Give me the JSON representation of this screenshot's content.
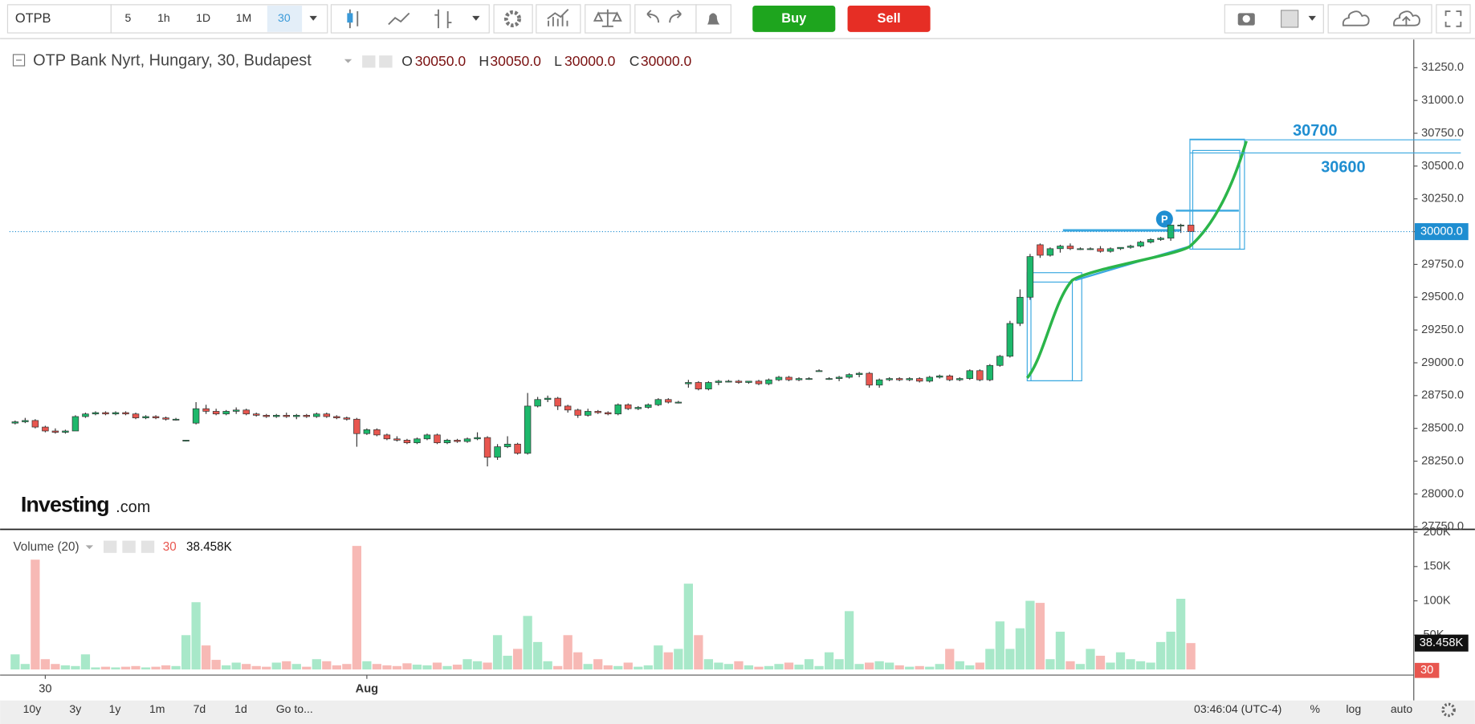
{
  "toolbar": {
    "symbol": "OTPB",
    "intervals": [
      "5",
      "1h",
      "1D",
      "1M",
      "30"
    ],
    "buy": "Buy",
    "sell": "Sell"
  },
  "legend": {
    "title": "OTP Bank Nyrt, Hungary, 30, Budapest",
    "o_key": "O",
    "o": "30050.0",
    "h_key": "H",
    "h": "30050.0",
    "l_key": "L",
    "l": "30000.0",
    "c_key": "C",
    "c": "30000.0"
  },
  "volume_legend": {
    "title": "Volume (20)",
    "interval": "30",
    "value": "38.458K"
  },
  "logo": {
    "main": "Investing",
    "suffix": ".com"
  },
  "chart_data": {
    "type": "candlestick",
    "ylim": [
      27730,
      31465
    ],
    "yticks": [
      {
        "value": 31250,
        "label": "31250.0"
      },
      {
        "value": 31000,
        "label": "31000.0"
      },
      {
        "value": 30750,
        "label": "30750.0"
      },
      {
        "value": 30500,
        "label": "30500.0"
      },
      {
        "value": 30250,
        "label": "30250.0"
      },
      {
        "value": 30000,
        "label": "30000.0"
      },
      {
        "value": 29750,
        "label": "29750.0"
      },
      {
        "value": 29500,
        "label": "29500.0"
      },
      {
        "value": 29250,
        "label": "29250.0"
      },
      {
        "value": 29000,
        "label": "29000.0"
      },
      {
        "value": 28750,
        "label": "28750.0"
      },
      {
        "value": 28500,
        "label": "28500.0"
      },
      {
        "value": 28250,
        "label": "28250.0"
      },
      {
        "value": 28000,
        "label": "28000.0"
      },
      {
        "value": 27750,
        "label": "27750.0"
      }
    ],
    "grid": false,
    "up_color": "#1db86b",
    "down_color": "#e8564f",
    "ohlc": [
      [
        28540,
        28560,
        28530,
        28550
      ],
      [
        28550,
        28580,
        28540,
        28560
      ],
      [
        28560,
        28570,
        28500,
        28510
      ],
      [
        28510,
        28520,
        28470,
        28480
      ],
      [
        28480,
        28500,
        28460,
        28470
      ],
      [
        28470,
        28490,
        28460,
        28480
      ],
      [
        28480,
        28600,
        28480,
        28590
      ],
      [
        28590,
        28620,
        28580,
        28610
      ],
      [
        28610,
        28630,
        28600,
        28620
      ],
      [
        28620,
        28630,
        28600,
        28610
      ],
      [
        28610,
        28630,
        28600,
        28620
      ],
      [
        28620,
        28630,
        28600,
        28610
      ],
      [
        28610,
        28620,
        28570,
        28580
      ],
      [
        28580,
        28600,
        28570,
        28590
      ],
      [
        28590,
        28600,
        28570,
        28580
      ],
      [
        28580,
        28590,
        28560,
        28570
      ],
      [
        28570,
        28580,
        28560,
        28570
      ],
      [
        28410,
        28410,
        28400,
        28410
      ],
      [
        28540,
        28700,
        28530,
        28650
      ],
      [
        28650,
        28680,
        28610,
        28630
      ],
      [
        28630,
        28650,
        28600,
        28610
      ],
      [
        28610,
        28640,
        28600,
        28630
      ],
      [
        28630,
        28660,
        28610,
        28640
      ],
      [
        28640,
        28650,
        28600,
        28610
      ],
      [
        28610,
        28620,
        28590,
        28600
      ],
      [
        28600,
        28610,
        28580,
        28590
      ],
      [
        28590,
        28610,
        28580,
        28600
      ],
      [
        28600,
        28620,
        28580,
        28590
      ],
      [
        28590,
        28610,
        28570,
        28600
      ],
      [
        28600,
        28610,
        28580,
        28590
      ],
      [
        28590,
        28620,
        28580,
        28610
      ],
      [
        28610,
        28620,
        28580,
        28590
      ],
      [
        28590,
        28600,
        28570,
        28580
      ],
      [
        28580,
        28590,
        28560,
        28570
      ],
      [
        28570,
        28580,
        28360,
        28460
      ],
      [
        28460,
        28500,
        28450,
        28490
      ],
      [
        28490,
        28500,
        28440,
        28450
      ],
      [
        28450,
        28460,
        28410,
        28420
      ],
      [
        28420,
        28440,
        28400,
        28410
      ],
      [
        28410,
        28420,
        28380,
        28390
      ],
      [
        28390,
        28430,
        28380,
        28420
      ],
      [
        28420,
        28460,
        28410,
        28450
      ],
      [
        28450,
        28460,
        28380,
        28390
      ],
      [
        28390,
        28420,
        28380,
        28410
      ],
      [
        28410,
        28420,
        28390,
        28400
      ],
      [
        28400,
        28430,
        28390,
        28420
      ],
      [
        28420,
        28470,
        28410,
        28430
      ],
      [
        28430,
        28440,
        28210,
        28280
      ],
      [
        28280,
        28380,
        28260,
        28360
      ],
      [
        28360,
        28440,
        28350,
        28380
      ],
      [
        28380,
        28390,
        28300,
        28310
      ],
      [
        28310,
        28770,
        28300,
        28670
      ],
      [
        28670,
        28740,
        28660,
        28720
      ],
      [
        28720,
        28750,
        28700,
        28730
      ],
      [
        28730,
        28740,
        28640,
        28670
      ],
      [
        28670,
        28680,
        28620,
        28640
      ],
      [
        28640,
        28650,
        28580,
        28600
      ],
      [
        28600,
        28650,
        28590,
        28630
      ],
      [
        28630,
        28640,
        28610,
        28620
      ],
      [
        28620,
        28630,
        28600,
        28610
      ],
      [
        28610,
        28690,
        28600,
        28680
      ],
      [
        28680,
        28690,
        28640,
        28650
      ],
      [
        28650,
        28670,
        28640,
        28660
      ],
      [
        28660,
        28690,
        28650,
        28680
      ],
      [
        28680,
        28730,
        28670,
        28720
      ],
      [
        28720,
        28730,
        28690,
        28700
      ],
      [
        28700,
        28710,
        28690,
        28700
      ],
      [
        28840,
        28870,
        28810,
        28850
      ],
      [
        28850,
        28860,
        28790,
        28800
      ],
      [
        28800,
        28860,
        28790,
        28850
      ],
      [
        28850,
        28870,
        28830,
        28860
      ],
      [
        28860,
        28870,
        28850,
        28860
      ],
      [
        28860,
        28870,
        28840,
        28850
      ],
      [
        28850,
        28860,
        28840,
        28860
      ],
      [
        28860,
        28870,
        28830,
        28840
      ],
      [
        28840,
        28880,
        28830,
        28870
      ],
      [
        28870,
        28900,
        28860,
        28890
      ],
      [
        28890,
        28900,
        28860,
        28870
      ],
      [
        28870,
        28890,
        28860,
        28880
      ],
      [
        28880,
        28890,
        28870,
        28880
      ],
      [
        28940,
        28950,
        28940,
        28940
      ],
      [
        28880,
        28890,
        28870,
        28880
      ],
      [
        28880,
        28900,
        28860,
        28890
      ],
      [
        28890,
        28920,
        28880,
        28910
      ],
      [
        28910,
        28930,
        28890,
        28920
      ],
      [
        28920,
        28930,
        28810,
        28830
      ],
      [
        28830,
        28880,
        28810,
        28870
      ],
      [
        28870,
        28890,
        28860,
        28880
      ],
      [
        28880,
        28890,
        28860,
        28870
      ],
      [
        28870,
        28890,
        28860,
        28880
      ],
      [
        28880,
        28890,
        28850,
        28860
      ],
      [
        28860,
        28900,
        28850,
        28890
      ],
      [
        28890,
        28910,
        28880,
        28900
      ],
      [
        28900,
        28910,
        28860,
        28870
      ],
      [
        28870,
        28890,
        28860,
        28880
      ],
      [
        28880,
        28950,
        28870,
        28940
      ],
      [
        28940,
        28950,
        28860,
        28870
      ],
      [
        28870,
        28990,
        28860,
        28980
      ],
      [
        28980,
        29060,
        28970,
        29050
      ],
      [
        29050,
        29320,
        29040,
        29300
      ],
      [
        29300,
        29560,
        29280,
        29500
      ],
      [
        29500,
        29830,
        29480,
        29810
      ],
      [
        29900,
        29910,
        29800,
        29820
      ],
      [
        29820,
        29880,
        29810,
        29870
      ],
      [
        29870,
        29900,
        29840,
        29890
      ],
      [
        29890,
        29910,
        29860,
        29870
      ],
      [
        29870,
        29880,
        29860,
        29870
      ],
      [
        29870,
        29880,
        29860,
        29870
      ],
      [
        29870,
        29890,
        29840,
        29850
      ],
      [
        29850,
        29880,
        29840,
        29870
      ],
      [
        29870,
        29880,
        29860,
        29880
      ],
      [
        29880,
        29900,
        29870,
        29890
      ],
      [
        29890,
        29930,
        29880,
        29920
      ],
      [
        29920,
        29950,
        29910,
        29940
      ],
      [
        29940,
        29960,
        29930,
        29950
      ],
      [
        29950,
        30050,
        29930,
        30050
      ],
      [
        30050,
        30060,
        29990,
        30050
      ],
      [
        30050,
        30050,
        30000,
        30000
      ]
    ],
    "volume": [
      22000,
      8000,
      160000,
      15000,
      8000,
      6000,
      5000,
      22000,
      3000,
      4000,
      3000,
      4000,
      5000,
      3000,
      4000,
      6000,
      5000,
      50000,
      98000,
      35000,
      14000,
      6000,
      10000,
      8000,
      5000,
      4000,
      10000,
      12000,
      8000,
      4000,
      15000,
      12000,
      6000,
      8000,
      180000,
      12000,
      8000,
      6000,
      5000,
      9000,
      7000,
      6000,
      10000,
      5000,
      7000,
      15000,
      12000,
      10000,
      50000,
      20000,
      30000,
      78000,
      40000,
      12000,
      5000,
      50000,
      25000,
      8000,
      15000,
      6000,
      5000,
      10000,
      4000,
      6000,
      35000,
      25000,
      30000,
      125000,
      50000,
      15000,
      10000,
      8000,
      12000,
      6000,
      4000,
      5000,
      8000,
      10000,
      7000,
      15000,
      5000,
      25000,
      15000,
      85000,
      8000,
      10000,
      12000,
      10000,
      6000,
      4000,
      5000,
      4000,
      8000,
      30000,
      12000,
      6000,
      10000,
      30000,
      70000,
      30000,
      60000,
      100000,
      97000,
      15000,
      55000,
      12000,
      8000,
      30000,
      20000,
      10000,
      25000,
      15000,
      12000,
      10000,
      40000,
      55000,
      103000,
      38458
    ],
    "volume_ylim": [
      0,
      200000
    ],
    "volume_yticks": [
      {
        "value": 200000,
        "label": "200K"
      },
      {
        "value": 150000,
        "label": "150K"
      },
      {
        "value": 100000,
        "label": "100K"
      },
      {
        "value": 50000,
        "label": "50K"
      }
    ],
    "categories": [
      null,
      null,
      null,
      "30",
      null,
      null,
      null,
      null,
      null,
      null,
      null,
      null,
      null,
      null,
      null,
      null,
      null,
      null,
      null,
      null,
      null,
      null,
      null,
      null,
      null,
      null,
      null,
      null,
      null,
      null,
      null,
      null,
      null,
      null,
      null,
      "Aug",
      null,
      null,
      null,
      null,
      null,
      null,
      null,
      null,
      null,
      null,
      null,
      null,
      null,
      null,
      null,
      null,
      null,
      null,
      null,
      null,
      null,
      null,
      null,
      null,
      null,
      null,
      null,
      null,
      null,
      null,
      null,
      null,
      null,
      null,
      null,
      null,
      null,
      null,
      null,
      null,
      null,
      null,
      null,
      null,
      null,
      null,
      null,
      null,
      null,
      null,
      null,
      null,
      null,
      null,
      null,
      null,
      null,
      null,
      null,
      null,
      null,
      null,
      null,
      null,
      null,
      null,
      null,
      null,
      null,
      null,
      null,
      null,
      null,
      null,
      null,
      null,
      null,
      null,
      null,
      null,
      null,
      null
    ],
    "price_tag": "30000.0",
    "levels": [
      30700,
      30600
    ],
    "marker": "P"
  },
  "bottom_bar": {
    "ranges": [
      "10y",
      "3y",
      "1y",
      "1m",
      "7d",
      "1d"
    ],
    "goto": "Go to...",
    "clock": "03:46:04 (UTC-4)",
    "options": [
      "%",
      "log",
      "auto"
    ]
  }
}
